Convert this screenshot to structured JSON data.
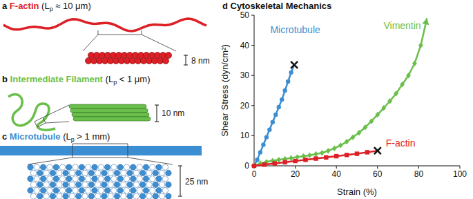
{
  "panels": [
    {
      "letter": "a",
      "name": "F-actin",
      "color": "#dd1f26",
      "length_label": {
        "text": "(L",
        "sub": "p",
        "rest": " ≈ 10 μm)"
      },
      "scale_label": "8 nm"
    },
    {
      "letter": "b",
      "name": "Intermediate Filament",
      "color": "#6abf4b",
      "length_label": {
        "text": "(L",
        "sub": "p",
        "rest": " < 1 μm)"
      },
      "scale_label": "10 nm"
    },
    {
      "letter": "c",
      "name": "Microtubule",
      "color": "#3c8ed2",
      "length_label": {
        "text": "(L",
        "sub": "p",
        "rest": " > 1 mm)"
      },
      "scale_label": "25 nm"
    }
  ],
  "chart_data": {
    "letter": "d",
    "type": "line",
    "title": "Cytoskeletal Mechanics",
    "x_label": "Strain (%)",
    "y_label": "Shear Stress (dyn/cm²)",
    "xlim": [
      0,
      100
    ],
    "xticks": [
      0,
      20,
      40,
      60,
      80,
      100
    ],
    "ylim": [
      0,
      50
    ],
    "yticks": [
      0,
      10,
      20,
      30,
      40,
      50
    ],
    "grid": false,
    "series": [
      {
        "name": "Microtubule",
        "color": "#3c8ed2",
        "marker": "circle",
        "x": [
          0,
          1.5,
          3,
          4.5,
          6,
          7.5,
          9,
          10.5,
          12,
          13.5,
          15,
          16.5,
          18,
          19.5
        ],
        "values": [
          0,
          2,
          4.5,
          7,
          9.5,
          12,
          14.5,
          17,
          19.5,
          22,
          25,
          28,
          31,
          33.5
        ]
      },
      {
        "name": "Vimentin",
        "color": "#6abf4b",
        "marker": "diamond",
        "x": [
          0,
          3,
          6,
          9,
          12,
          15,
          18,
          21,
          24,
          27,
          30,
          33,
          36,
          39,
          42,
          45,
          48,
          51,
          54,
          57,
          60,
          63,
          66,
          69,
          72,
          75,
          78,
          81,
          84
        ],
        "values": [
          0,
          0.8,
          1.3,
          1.7,
          2,
          2.3,
          2.6,
          2.9,
          3.2,
          3.5,
          3.9,
          4.3,
          5,
          5.8,
          6.8,
          8,
          9.5,
          11,
          12.8,
          14.8,
          17,
          19.2,
          21.5,
          24,
          27,
          30,
          34,
          40,
          49
        ]
      },
      {
        "name": "F-actin",
        "color": "#dd1f26",
        "marker": "square",
        "x": [
          0,
          5,
          10,
          15,
          20,
          25,
          30,
          35,
          40,
          45,
          50,
          55,
          60
        ],
        "values": [
          0,
          0.4,
          0.8,
          1.2,
          1.6,
          2,
          2.4,
          2.8,
          3.2,
          3.6,
          4,
          4.5,
          5
        ]
      }
    ]
  }
}
